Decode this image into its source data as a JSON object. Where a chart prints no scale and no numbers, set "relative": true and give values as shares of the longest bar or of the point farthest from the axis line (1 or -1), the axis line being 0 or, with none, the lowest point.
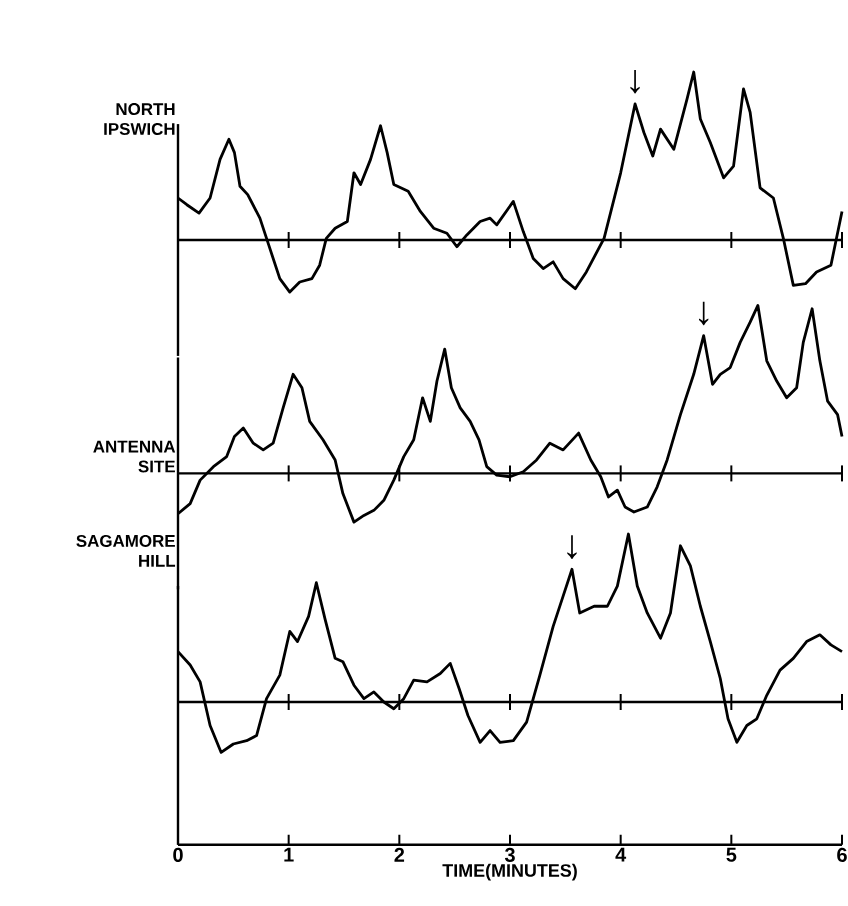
{
  "chart_data": [
    {
      "type": "line",
      "relative": true,
      "xlim": [
        0,
        6
      ],
      "xticks": [
        0,
        1,
        2,
        3,
        4,
        5,
        6
      ],
      "tick_labels": false,
      "series": [
        {
          "name": "NORTH IPSWICH",
          "color": "#000000",
          "x": [
            0,
            0.08,
            0.19,
            0.29,
            0.38,
            0.46,
            0.51,
            0.56,
            0.63,
            0.74,
            0.83,
            0.92,
            1.01,
            1.1,
            1.21,
            1.28,
            1.34,
            1.42,
            1.53,
            1.59,
            1.65,
            1.74,
            1.83,
            1.89,
            1.95,
            2.08,
            2.19,
            2.31,
            2.43,
            2.52,
            2.61,
            2.73,
            2.82,
            2.88,
            3.03,
            3.12,
            3.21,
            3.3,
            3.39,
            3.48,
            3.59,
            3.69,
            3.85,
            4.0,
            4.13,
            4.21,
            4.29,
            4.36,
            4.48,
            4.6,
            4.66,
            4.72,
            4.81,
            4.93,
            5.02,
            5.11,
            5.17,
            5.26,
            5.38,
            5.47,
            5.56,
            5.67,
            5.77,
            5.9,
            6.0
          ],
          "values": [
            0.25,
            0.21,
            0.16,
            0.25,
            0.48,
            0.6,
            0.52,
            0.32,
            0.27,
            0.13,
            -0.05,
            -0.23,
            -0.31,
            -0.25,
            -0.23,
            -0.15,
            0.01,
            0.07,
            0.11,
            0.4,
            0.33,
            0.48,
            0.68,
            0.52,
            0.33,
            0.29,
            0.17,
            0.07,
            0.04,
            -0.04,
            0.03,
            0.11,
            0.13,
            0.09,
            0.23,
            0.05,
            -0.11,
            -0.17,
            -0.13,
            -0.23,
            -0.29,
            -0.19,
            0.01,
            0.4,
            0.81,
            0.64,
            0.5,
            0.66,
            0.54,
            0.84,
            1.0,
            0.72,
            0.58,
            0.37,
            0.44,
            0.9,
            0.76,
            0.31,
            0.25,
            0.01,
            -0.27,
            -0.26,
            -0.19,
            -0.15,
            0.17
          ]
        }
      ],
      "annotations": [
        {
          "text": "↓",
          "x": 4.13,
          "y": 0.81
        }
      ]
    },
    {
      "type": "line",
      "relative": true,
      "xlim": [
        0,
        6
      ],
      "xticks": [
        0,
        1,
        2,
        3,
        4,
        5,
        6
      ],
      "tick_labels": false,
      "series": [
        {
          "name": "ANTENNA SITE",
          "color": "#000000",
          "x": [
            0,
            0.11,
            0.2,
            0.32,
            0.44,
            0.51,
            0.59,
            0.68,
            0.77,
            0.86,
            0.95,
            1.04,
            1.12,
            1.19,
            1.31,
            1.42,
            1.49,
            1.59,
            1.68,
            1.77,
            1.86,
            1.95,
            2.04,
            2.13,
            2.21,
            2.28,
            2.34,
            2.41,
            2.47,
            2.55,
            2.64,
            2.72,
            2.79,
            2.88,
            3.0,
            3.12,
            3.24,
            3.36,
            3.48,
            3.62,
            3.73,
            3.82,
            3.89,
            3.97,
            4.04,
            4.12,
            4.24,
            4.33,
            4.42,
            4.54,
            4.66,
            4.75,
            4.83,
            4.9,
            4.99,
            5.08,
            5.17,
            5.24,
            5.32,
            5.41,
            5.5,
            5.59,
            5.65,
            5.73,
            5.8,
            5.87,
            5.96,
            6.0
          ],
          "values": [
            -0.24,
            -0.18,
            -0.04,
            0.04,
            0.1,
            0.22,
            0.27,
            0.18,
            0.14,
            0.18,
            0.39,
            0.59,
            0.51,
            0.31,
            0.2,
            0.08,
            -0.12,
            -0.29,
            -0.25,
            -0.22,
            -0.16,
            -0.04,
            0.1,
            0.2,
            0.45,
            0.31,
            0.55,
            0.74,
            0.51,
            0.39,
            0.31,
            0.2,
            0.04,
            -0.01,
            -0.02,
            0.01,
            0.08,
            0.18,
            0.14,
            0.24,
            0.08,
            -0.02,
            -0.14,
            -0.1,
            -0.2,
            -0.23,
            -0.2,
            -0.08,
            0.08,
            0.35,
            0.59,
            0.82,
            0.53,
            0.59,
            0.63,
            0.78,
            0.9,
            1.0,
            0.67,
            0.55,
            0.45,
            0.51,
            0.78,
            0.98,
            0.67,
            0.43,
            0.35,
            0.22
          ]
        }
      ],
      "annotations": [
        {
          "text": "↓",
          "x": 4.75,
          "y": 0.82
        }
      ]
    },
    {
      "type": "line",
      "relative": true,
      "xlim": [
        0,
        6
      ],
      "xticks": [
        0,
        1,
        2,
        3,
        4,
        5,
        6
      ],
      "tick_labels": "x",
      "xlabel": "TIME(MINUTES)",
      "series": [
        {
          "name": "SAGAMORE HILL",
          "color": "#000000",
          "x": [
            0,
            0.11,
            0.2,
            0.29,
            0.39,
            0.5,
            0.62,
            0.71,
            0.8,
            0.92,
            1.01,
            1.08,
            1.18,
            1.25,
            1.33,
            1.42,
            1.49,
            1.59,
            1.68,
            1.77,
            1.86,
            1.95,
            2.04,
            2.13,
            2.25,
            2.37,
            2.46,
            2.54,
            2.62,
            2.73,
            2.82,
            2.91,
            3.03,
            3.15,
            3.27,
            3.39,
            3.48,
            3.56,
            3.63,
            3.76,
            3.88,
            3.97,
            4.07,
            4.15,
            4.24,
            4.36,
            4.45,
            4.54,
            4.63,
            4.72,
            4.81,
            4.9,
            4.97,
            5.05,
            5.14,
            5.23,
            5.32,
            5.44,
            5.56,
            5.68,
            5.8,
            5.9,
            6.0
          ],
          "values": [
            0.3,
            0.22,
            0.12,
            -0.14,
            -0.3,
            -0.25,
            -0.23,
            -0.2,
            0.02,
            0.16,
            0.42,
            0.36,
            0.51,
            0.71,
            0.49,
            0.26,
            0.24,
            0.1,
            0.02,
            0.06,
            0.0,
            -0.04,
            0.02,
            0.13,
            0.12,
            0.17,
            0.23,
            0.08,
            -0.08,
            -0.24,
            -0.17,
            -0.24,
            -0.23,
            -0.12,
            0.16,
            0.45,
            0.63,
            0.79,
            0.53,
            0.57,
            0.57,
            0.69,
            1.0,
            0.69,
            0.53,
            0.38,
            0.53,
            0.93,
            0.81,
            0.57,
            0.36,
            0.14,
            -0.1,
            -0.24,
            -0.14,
            -0.1,
            0.04,
            0.19,
            0.26,
            0.36,
            0.4,
            0.34,
            0.3
          ]
        }
      ],
      "annotations": [
        {
          "text": "↓",
          "x": 3.56,
          "y": 0.79
        }
      ]
    }
  ]
}
